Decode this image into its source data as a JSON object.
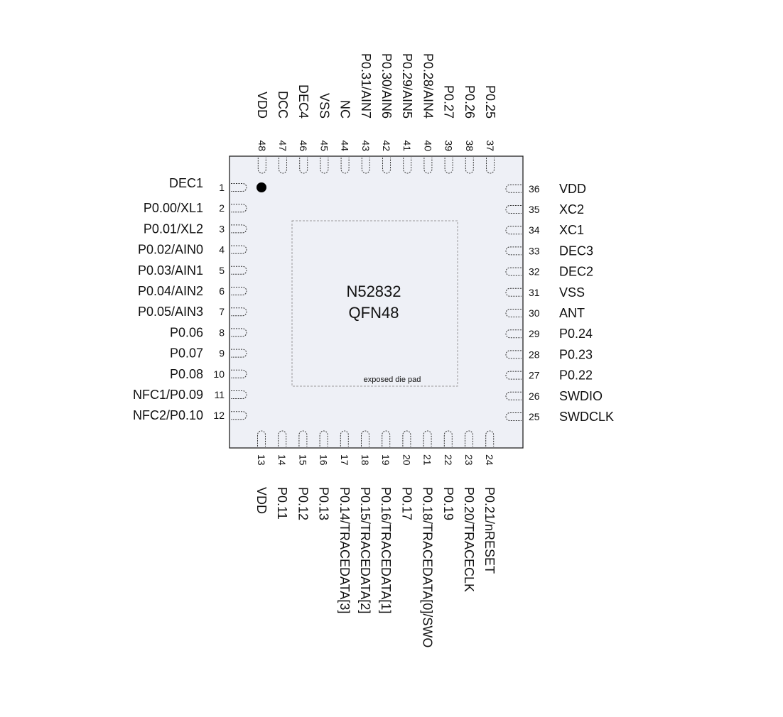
{
  "chip": {
    "name": "N52832",
    "package": "QFN48",
    "pad_label": "exposed die pad",
    "body_color": "#eef0f6",
    "outline_color": "#222222",
    "pad_outline_color": "#999999"
  },
  "pins": {
    "left": [
      {
        "num": "1",
        "name": "DEC1"
      },
      {
        "num": "2",
        "name": "P0.00/XL1"
      },
      {
        "num": "3",
        "name": "P0.01/XL2"
      },
      {
        "num": "4",
        "name": "P0.02/AIN0"
      },
      {
        "num": "5",
        "name": "P0.03/AIN1"
      },
      {
        "num": "6",
        "name": "P0.04/AIN2"
      },
      {
        "num": "7",
        "name": "P0.05/AIN3"
      },
      {
        "num": "8",
        "name": "P0.06"
      },
      {
        "num": "9",
        "name": "P0.07"
      },
      {
        "num": "10",
        "name": "P0.08"
      },
      {
        "num": "11",
        "name": "NFC1/P0.09"
      },
      {
        "num": "12",
        "name": "NFC2/P0.10"
      }
    ],
    "bottom": [
      {
        "num": "13",
        "name": "VDD"
      },
      {
        "num": "14",
        "name": "P0.11"
      },
      {
        "num": "15",
        "name": "P0.12"
      },
      {
        "num": "16",
        "name": "P0.13"
      },
      {
        "num": "17",
        "name": "P0.14/TRACEDATA[3]"
      },
      {
        "num": "18",
        "name": "P0.15/TRACEDATA[2]"
      },
      {
        "num": "19",
        "name": "P0.16/TRACEDATA[1]"
      },
      {
        "num": "20",
        "name": "P0.17"
      },
      {
        "num": "21",
        "name": "P0.18/TRACEDATA[0]/SWO"
      },
      {
        "num": "22",
        "name": "P0.19"
      },
      {
        "num": "23",
        "name": "P0.20/TRACECLK"
      },
      {
        "num": "24",
        "name": "P0.21/nRESET"
      }
    ],
    "right": [
      {
        "num": "25",
        "name": "SWDCLK"
      },
      {
        "num": "26",
        "name": "SWDIO"
      },
      {
        "num": "27",
        "name": "P0.22"
      },
      {
        "num": "28",
        "name": "P0.23"
      },
      {
        "num": "29",
        "name": "P0.24"
      },
      {
        "num": "30",
        "name": "ANT"
      },
      {
        "num": "31",
        "name": "VSS"
      },
      {
        "num": "32",
        "name": "DEC2"
      },
      {
        "num": "33",
        "name": "DEC3"
      },
      {
        "num": "34",
        "name": "XC1"
      },
      {
        "num": "35",
        "name": "XC2"
      },
      {
        "num": "36",
        "name": "VDD"
      }
    ],
    "top": [
      {
        "num": "37",
        "name": "P0.25"
      },
      {
        "num": "38",
        "name": "P0.26"
      },
      {
        "num": "39",
        "name": "P0.27"
      },
      {
        "num": "40",
        "name": "P0.28/AIN4"
      },
      {
        "num": "41",
        "name": "P0.29/AIN5"
      },
      {
        "num": "42",
        "name": "P0.30/AIN6"
      },
      {
        "num": "43",
        "name": "P0.31/AIN7"
      },
      {
        "num": "44",
        "name": "NC"
      },
      {
        "num": "45",
        "name": "VSS"
      },
      {
        "num": "46",
        "name": "DEC4"
      },
      {
        "num": "47",
        "name": "DCC"
      },
      {
        "num": "48",
        "name": "VDD"
      }
    ]
  }
}
